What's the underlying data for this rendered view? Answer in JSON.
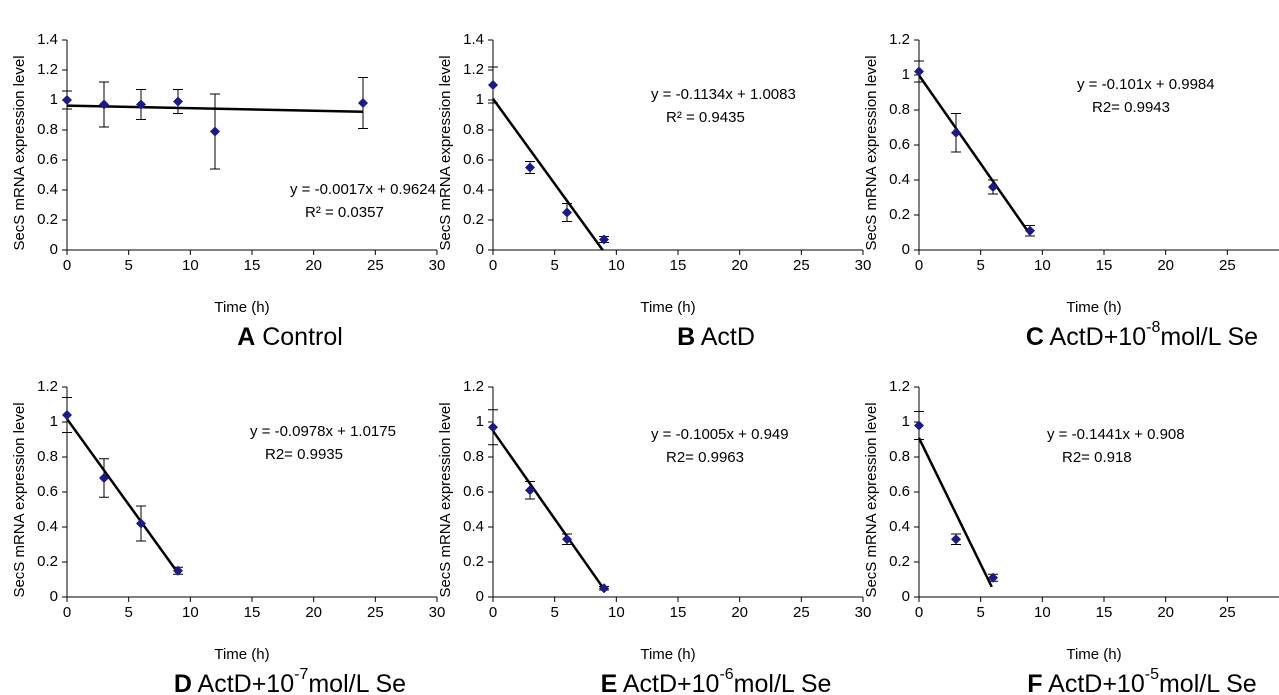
{
  "chart_data": [
    {
      "type": "scatter",
      "panel": "A",
      "caption": [
        "Control"
      ],
      "xlabel": "Time (h)",
      "ylabel": "SecS mRNA expression level",
      "x": [
        0,
        3,
        6,
        9,
        12,
        24
      ],
      "values": [
        1.0,
        0.97,
        0.97,
        0.99,
        0.79,
        0.98
      ],
      "errors": [
        0.06,
        0.15,
        0.1,
        0.08,
        0.25,
        0.17
      ],
      "trend": {
        "slope": -0.0017,
        "intercept": 0.9624,
        "xrange": [
          0,
          24
        ]
      },
      "equation": "y = -0.0017x + 0.9624",
      "r2": "R² = 0.0357",
      "color": "#1a1a8c",
      "xlim": [
        0,
        30
      ],
      "xticks": [
        0,
        5,
        10,
        15,
        20,
        25,
        30
      ],
      "ylim": [
        0,
        1.4
      ],
      "yticks": [
        0,
        0.2,
        0.4,
        0.6,
        0.8,
        1,
        1.2,
        1.4
      ]
    },
    {
      "type": "scatter",
      "panel": "B",
      "caption": [
        "ActD"
      ],
      "xlabel": "Time (h)",
      "ylabel": "SecS mRNA expression level",
      "x": [
        0,
        3,
        6,
        9
      ],
      "values": [
        1.1,
        0.55,
        0.25,
        0.07
      ],
      "errors": [
        0.12,
        0.04,
        0.06,
        0.02
      ],
      "trend": {
        "slope": -0.1134,
        "intercept": 1.0083,
        "xrange": [
          0,
          8.89
        ]
      },
      "equation": "y = -0.1134x + 1.0083",
      "r2": "R² = 0.9435",
      "color": "#1a1a8c",
      "xlim": [
        0,
        30
      ],
      "xticks": [
        0,
        5,
        10,
        15,
        20,
        25,
        30
      ],
      "ylim": [
        0,
        1.4
      ],
      "yticks": [
        0,
        0.2,
        0.4,
        0.6,
        0.8,
        1,
        1.2,
        1.4
      ]
    },
    {
      "type": "scatter",
      "panel": "C",
      "caption": [
        "ActD+10",
        "-8",
        "mol/L Se"
      ],
      "xlabel": "Time (h)",
      "ylabel": "SecS mRNA expression level",
      "x": [
        0,
        3,
        6,
        9
      ],
      "values": [
        1.02,
        0.67,
        0.36,
        0.11
      ],
      "errors": [
        0.06,
        0.11,
        0.04,
        0.03
      ],
      "trend": {
        "slope": -0.101,
        "intercept": 0.9984,
        "xrange": [
          0,
          9
        ]
      },
      "equation": "y = -0.101x + 0.9984",
      "r2": "R2= 0.9943",
      "color": "#1a1a8c",
      "xlim": [
        0,
        30
      ],
      "xticks": [
        0,
        5,
        10,
        15,
        20,
        25,
        30
      ],
      "ylim": [
        0,
        1.2
      ],
      "yticks": [
        0,
        0.2,
        0.4,
        0.6,
        0.8,
        1,
        1.2
      ]
    },
    {
      "type": "scatter",
      "panel": "D",
      "caption": [
        "ActD+10",
        "-7",
        "mol/L Se"
      ],
      "xlabel": "Time (h)",
      "ylabel": "SecS mRNA expression level",
      "x": [
        0,
        3,
        6,
        9
      ],
      "values": [
        1.04,
        0.68,
        0.42,
        0.15
      ],
      "errors": [
        0.1,
        0.11,
        0.1,
        0.02
      ],
      "trend": {
        "slope": -0.0978,
        "intercept": 1.0175,
        "xrange": [
          0,
          9
        ]
      },
      "equation": "y = -0.0978x + 1.0175",
      "r2": "R2= 0.9935",
      "color": "#1a1a8c",
      "xlim": [
        0,
        30
      ],
      "xticks": [
        0,
        5,
        10,
        15,
        20,
        25,
        30
      ],
      "ylim": [
        0,
        1.2
      ],
      "yticks": [
        0,
        0.2,
        0.4,
        0.6,
        0.8,
        1,
        1.2
      ]
    },
    {
      "type": "scatter",
      "panel": "E",
      "caption": [
        "ActD+10",
        "-6",
        "mol/L Se"
      ],
      "xlabel": "Time (h)",
      "ylabel": "SecS mRNA expression level",
      "x": [
        0,
        3,
        6,
        9
      ],
      "values": [
        0.97,
        0.61,
        0.33,
        0.05
      ],
      "errors": [
        0.1,
        0.05,
        0.03,
        0.01
      ],
      "trend": {
        "slope": -0.1005,
        "intercept": 0.949,
        "xrange": [
          0,
          9
        ]
      },
      "equation": "y = -0.1005x + 0.949",
      "r2": "R2= 0.9963",
      "color": "#1a1a8c",
      "xlim": [
        0,
        30
      ],
      "xticks": [
        0,
        5,
        10,
        15,
        20,
        25,
        30
      ],
      "ylim": [
        0,
        1.2
      ],
      "yticks": [
        0,
        0.2,
        0.4,
        0.6,
        0.8,
        1,
        1.2
      ]
    },
    {
      "type": "scatter",
      "panel": "F",
      "caption": [
        "ActD+10",
        "-5",
        "mol/L Se"
      ],
      "xlabel": "Time (h)",
      "ylabel": "SecS mRNA expression level",
      "x": [
        0,
        3,
        6
      ],
      "values": [
        0.98,
        0.33,
        0.11
      ],
      "errors": [
        0.08,
        0.03,
        0.02
      ],
      "trend": {
        "slope": -0.1441,
        "intercept": 0.908,
        "xrange": [
          0,
          5.9
        ]
      },
      "equation": "y = -0.1441x + 0.908",
      "r2": "R2= 0.918",
      "color": "#1a1a8c",
      "xlim": [
        0,
        30
      ],
      "xticks": [
        0,
        5,
        10,
        15,
        20,
        25,
        30
      ],
      "ylim": [
        0,
        1.2
      ],
      "yticks": [
        0,
        0.2,
        0.4,
        0.6,
        0.8,
        1,
        1.2
      ]
    }
  ]
}
